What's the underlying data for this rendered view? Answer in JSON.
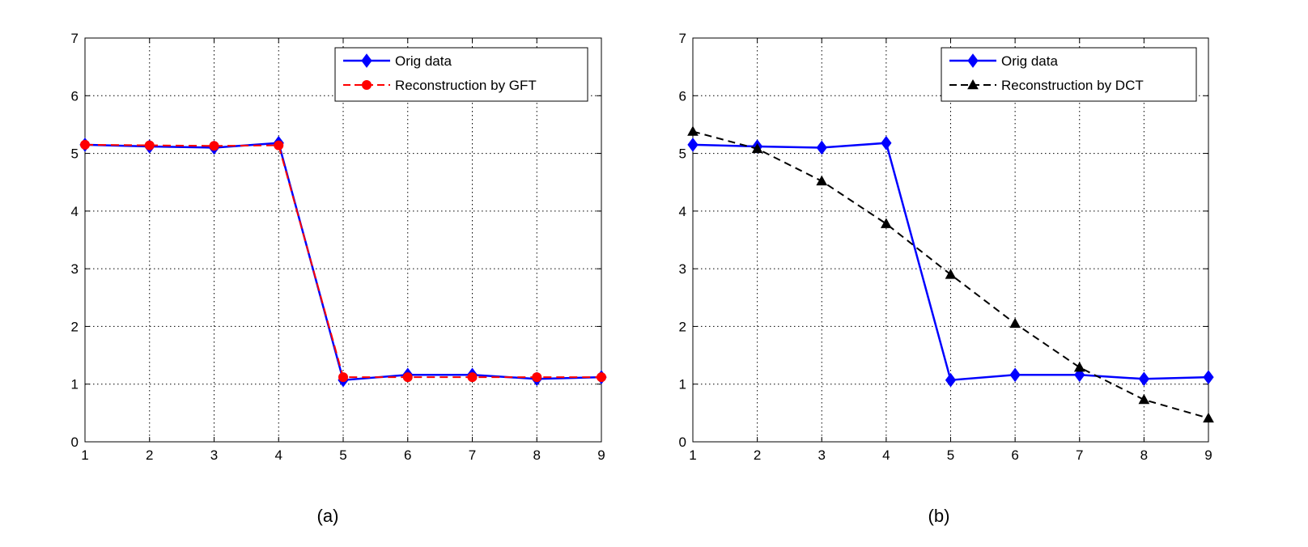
{
  "figure": {
    "captions": [
      "(a)",
      "(b)"
    ]
  },
  "chart_data": [
    {
      "type": "line",
      "panel": "(a)",
      "x": [
        1,
        2,
        3,
        4,
        5,
        6,
        7,
        8,
        9
      ],
      "xlim": [
        1,
        9
      ],
      "ylim": [
        0,
        7
      ],
      "x_ticks": [
        1,
        2,
        3,
        4,
        5,
        6,
        7,
        8,
        9
      ],
      "y_ticks": [
        0,
        1,
        2,
        3,
        4,
        5,
        6,
        7
      ],
      "grid": true,
      "legend_position": "top-right",
      "series": [
        {
          "name": "Orig data",
          "color": "#0000ff",
          "line_style": "solid",
          "marker": "diamond",
          "values": [
            5.15,
            5.12,
            5.1,
            5.18,
            1.07,
            1.16,
            1.16,
            1.09,
            1.12
          ]
        },
        {
          "name": "Reconstruction by GFT",
          "color": "#ff0000",
          "line_style": "dashed",
          "marker": "circle",
          "values": [
            5.15,
            5.14,
            5.13,
            5.14,
            1.12,
            1.12,
            1.12,
            1.12,
            1.12
          ]
        }
      ]
    },
    {
      "type": "line",
      "panel": "(b)",
      "x": [
        1,
        2,
        3,
        4,
        5,
        6,
        7,
        8,
        9
      ],
      "xlim": [
        1,
        9
      ],
      "ylim": [
        0,
        7
      ],
      "x_ticks": [
        1,
        2,
        3,
        4,
        5,
        6,
        7,
        8,
        9
      ],
      "y_ticks": [
        0,
        1,
        2,
        3,
        4,
        5,
        6,
        7
      ],
      "grid": true,
      "legend_position": "top-right",
      "series": [
        {
          "name": "Orig data",
          "color": "#0000ff",
          "line_style": "solid",
          "marker": "diamond",
          "values": [
            5.15,
            5.12,
            5.1,
            5.18,
            1.07,
            1.16,
            1.16,
            1.09,
            1.12
          ]
        },
        {
          "name": "Reconstruction by DCT",
          "color": "#000000",
          "line_style": "dashed",
          "marker": "triangle",
          "values": [
            5.38,
            5.08,
            4.52,
            3.78,
            2.9,
            2.05,
            1.29,
            0.73,
            0.41
          ]
        }
      ]
    }
  ]
}
